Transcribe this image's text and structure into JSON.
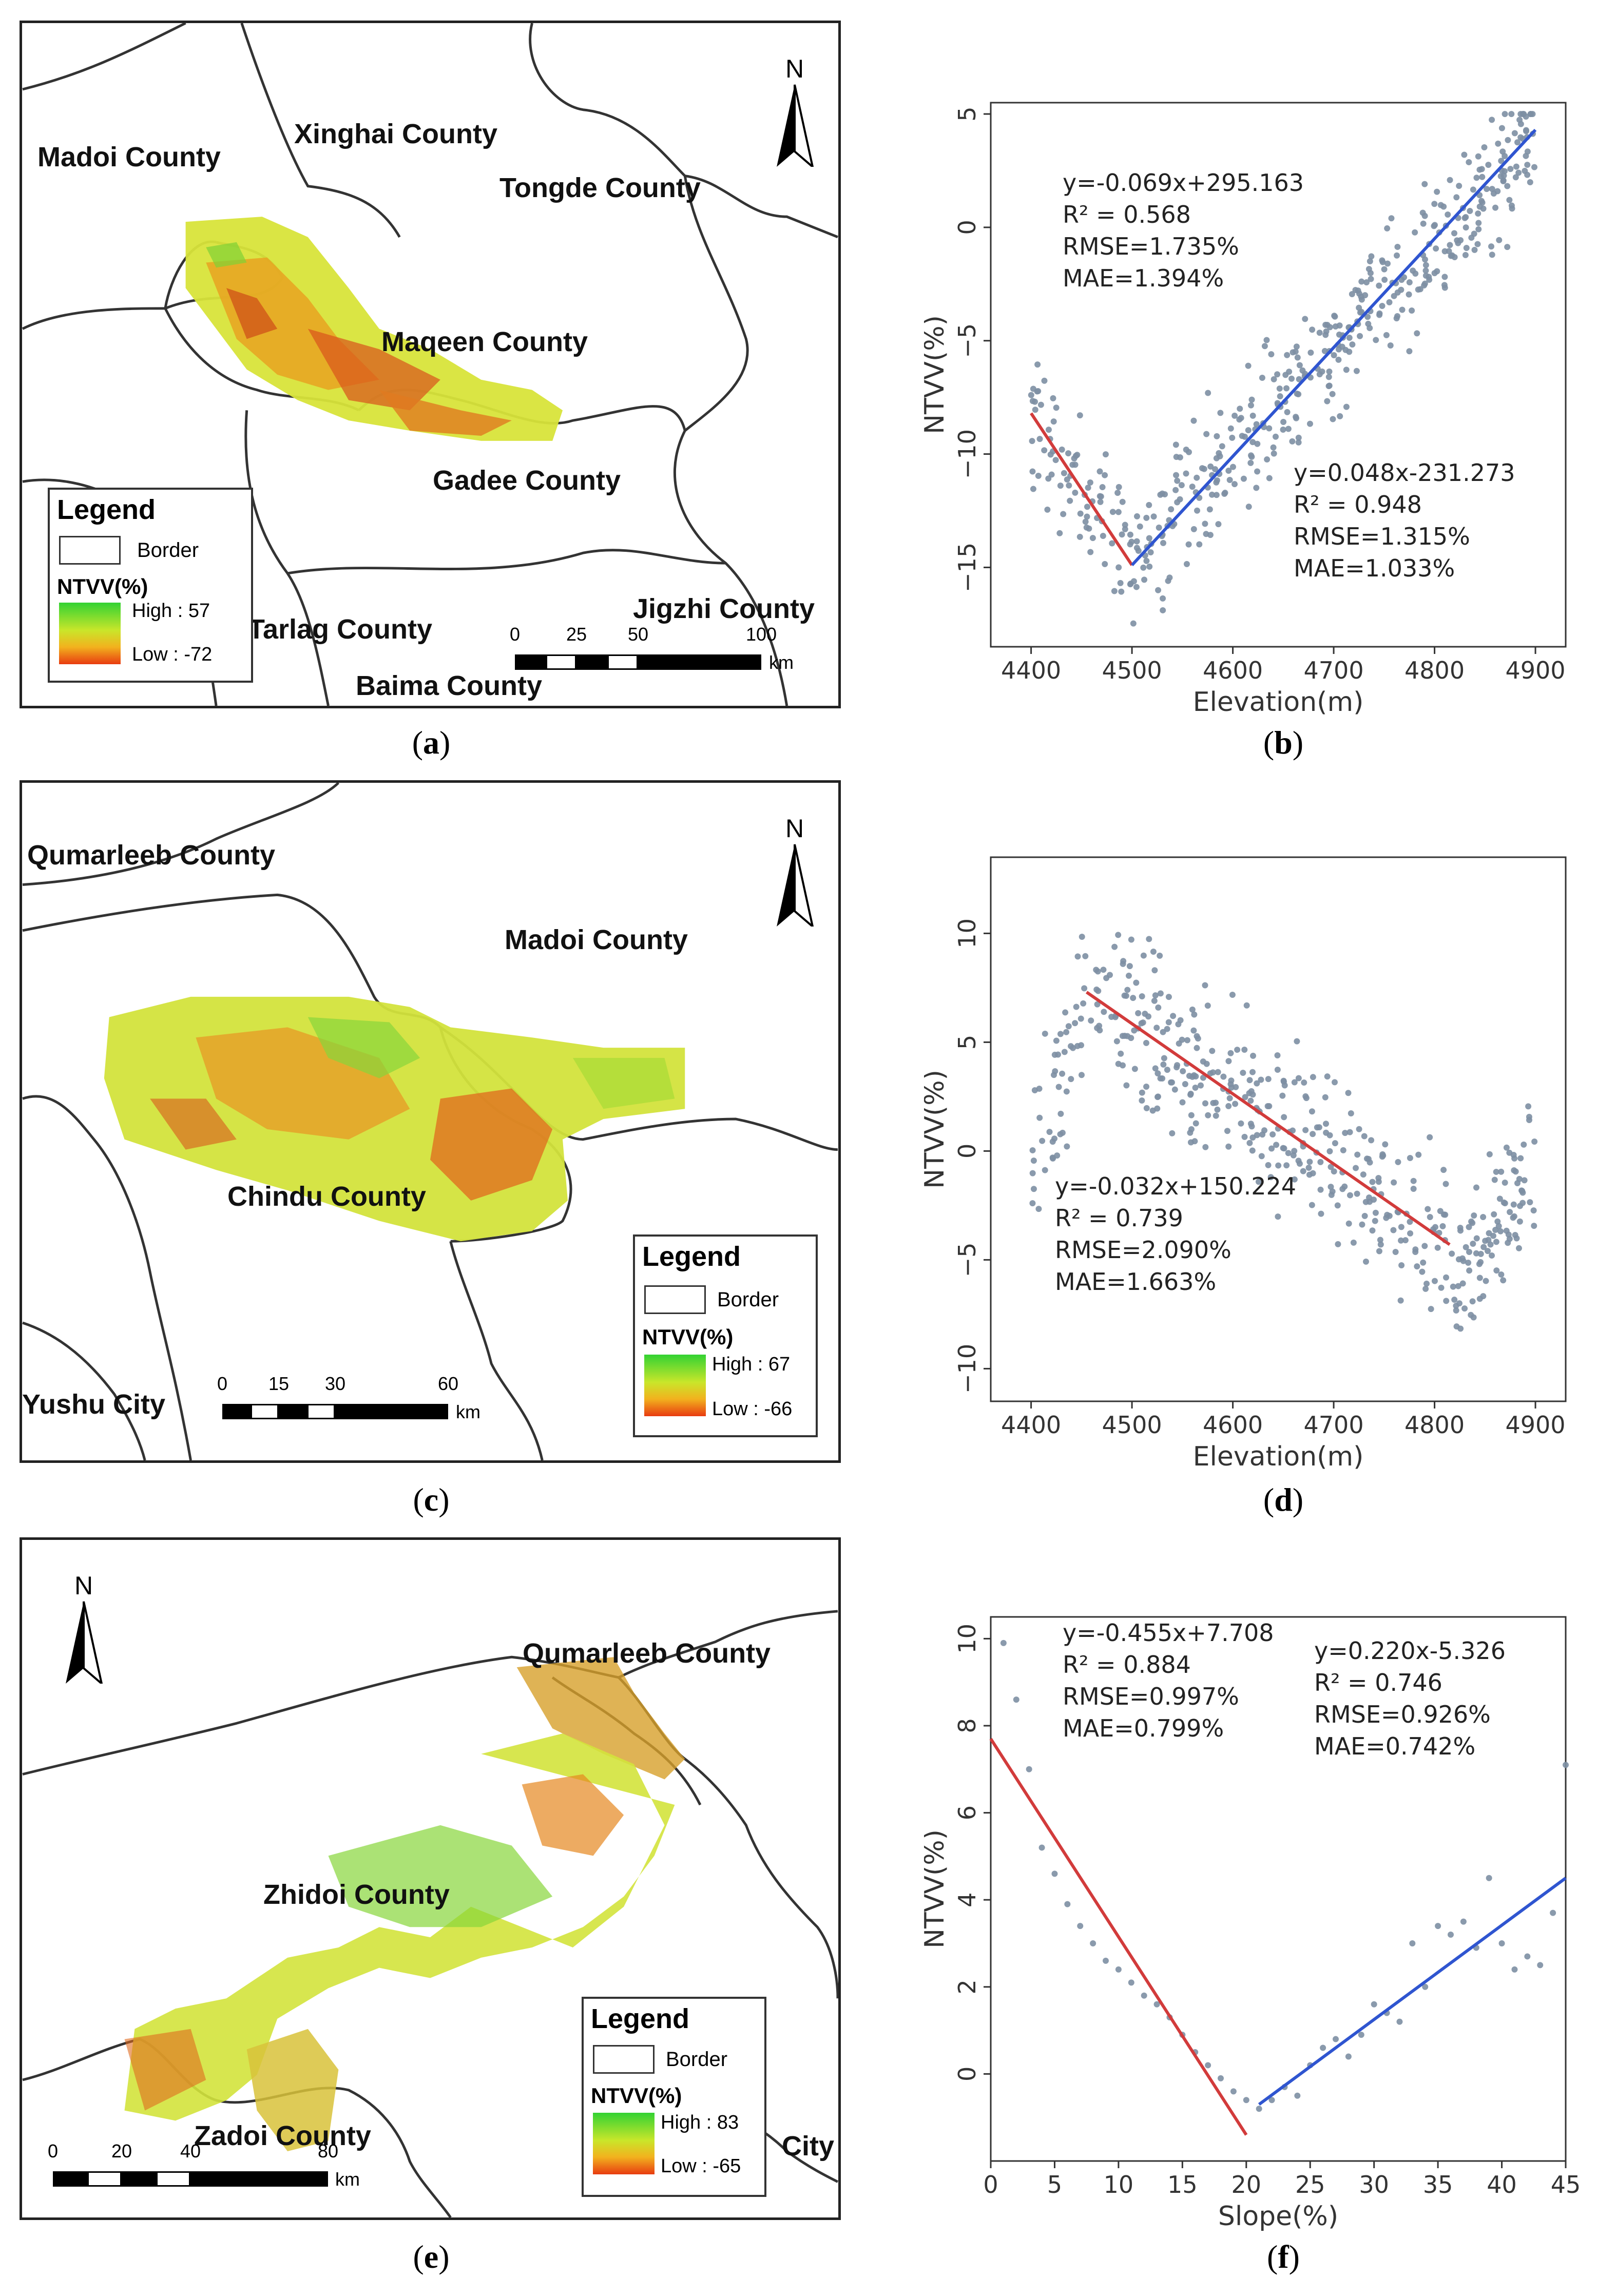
{
  "maps": [
    {
      "id": "a",
      "counties": [
        "Madoi County",
        "Xinghai County",
        "Tongde County",
        "Maqeen County",
        "Gadee County",
        "Tarlag County",
        "Jigzhi County",
        "Baima County"
      ],
      "north": "N",
      "legend": {
        "title": "Legend",
        "border": "Border",
        "ntvv": "NTVV(%)",
        "high": "High : 57",
        "low": "Low : -72"
      },
      "scale": {
        "ticks": [
          "0",
          "25",
          "50",
          "100"
        ],
        "unit": "km"
      },
      "caption": "a"
    },
    {
      "id": "c",
      "counties": [
        "Qumarleeb County",
        "Madoi County",
        "Chindu County",
        "Yushu City"
      ],
      "north": "N",
      "legend": {
        "title": "Legend",
        "border": "Border",
        "ntvv": "NTVV(%)",
        "high": "High : 67",
        "low": "Low : -66"
      },
      "scale": {
        "ticks": [
          "0",
          "15",
          "30",
          "60"
        ],
        "unit": "km"
      },
      "caption": "c"
    },
    {
      "id": "e",
      "counties": [
        "Qumarleeb County",
        "Zhidoi County",
        "Zadoi County",
        "City"
      ],
      "north": "N",
      "legend": {
        "title": "Legend",
        "border": "Border",
        "ntvv": "NTVV(%)",
        "high": "High : 83",
        "low": "Low : -65"
      },
      "scale": {
        "ticks": [
          "0",
          "20",
          "40",
          "80"
        ],
        "unit": "km"
      },
      "caption": "e"
    }
  ],
  "chart_data": [
    {
      "id": "b",
      "type": "scatter",
      "xlabel": "Elevation(m)",
      "ylabel": "NTVV(%)",
      "xlim": [
        4360,
        4930
      ],
      "ylim": [
        -18.5,
        5.5
      ],
      "xticks": [
        "4400",
        "4500",
        "4600",
        "4700",
        "4800",
        "4900"
      ],
      "yticks": [
        "5",
        "0",
        "−5",
        "−10",
        "−15"
      ],
      "ytick_values": [
        5,
        0,
        -5,
        -10,
        -15
      ],
      "xtick_values": [
        4400,
        4500,
        4600,
        4700,
        4800,
        4900
      ],
      "fits": [
        {
          "x": [
            4400,
            4500
          ],
          "y": [
            -8.2,
            -14.9
          ],
          "color": "#d23b3b"
        },
        {
          "x": [
            4500,
            4900
          ],
          "y": [
            -14.9,
            4.3
          ],
          "color": "#2f55d0"
        }
      ],
      "annotations": [
        {
          "lines": [
            "y=-0.069x+295.163",
            "R² = 0.568",
            "RMSE=1.735%",
            "MAE=1.394%"
          ]
        },
        {
          "lines": [
            "y=0.048x-231.273",
            "R² = 0.948",
            "RMSE=1.315%",
            "MAE=1.033%"
          ]
        }
      ],
      "caption": "b"
    },
    {
      "id": "d",
      "type": "scatter",
      "xlabel": "Elevation(m)",
      "ylabel": "NTVV(%)",
      "xlim": [
        4360,
        4930
      ],
      "ylim": [
        -11.5,
        13.5
      ],
      "xticks": [
        "4400",
        "4500",
        "4600",
        "4700",
        "4800",
        "4900"
      ],
      "yticks": [
        "10",
        "5",
        "0",
        "−5",
        "−10"
      ],
      "ytick_values": [
        10,
        5,
        0,
        -5,
        -10
      ],
      "xtick_values": [
        4400,
        4500,
        4600,
        4700,
        4800,
        4900
      ],
      "fits": [
        {
          "x": [
            4455,
            4815
          ],
          "y": [
            7.3,
            -4.3
          ],
          "color": "#d23b3b"
        }
      ],
      "annotations": [
        {
          "lines": [
            "y=-0.032x+150.224",
            "R² = 0.739",
            "RMSE=2.090%",
            "MAE=1.663%"
          ]
        }
      ],
      "caption": "d"
    },
    {
      "id": "f",
      "type": "scatter",
      "xlabel": "Slope(%)",
      "ylabel": "NTVV(%)",
      "xlim": [
        0,
        45
      ],
      "ylim": [
        -2,
        10.5
      ],
      "xticks": [
        "0",
        "5",
        "10",
        "15",
        "20",
        "25",
        "30",
        "35",
        "40",
        "45"
      ],
      "yticks": [
        "10",
        "8",
        "6",
        "4",
        "2",
        "0"
      ],
      "ytick_values": [
        10,
        8,
        6,
        4,
        2,
        0
      ],
      "xtick_values": [
        0,
        5,
        10,
        15,
        20,
        25,
        30,
        35,
        40,
        45
      ],
      "fits": [
        {
          "x": [
            0,
            20
          ],
          "y": [
            7.7,
            -1.4
          ],
          "color": "#d23b3b"
        },
        {
          "x": [
            21,
            45
          ],
          "y": [
            -0.7,
            4.5
          ],
          "color": "#2f55d0"
        }
      ],
      "points": {
        "x": [
          1,
          2,
          3,
          4,
          5,
          6,
          7,
          8,
          9,
          10,
          11,
          12,
          13,
          14,
          15,
          16,
          17,
          18,
          19,
          20,
          21,
          22,
          23,
          24,
          25,
          26,
          27,
          28,
          29,
          30,
          31,
          32,
          33,
          34,
          35,
          36,
          37,
          38,
          39,
          40,
          41,
          42,
          43,
          44,
          45
        ],
        "y": [
          9.9,
          8.6,
          7.0,
          5.2,
          4.6,
          3.9,
          3.4,
          3.0,
          2.6,
          2.4,
          2.1,
          1.8,
          1.6,
          1.3,
          0.9,
          0.5,
          0.2,
          -0.1,
          -0.4,
          -0.6,
          -0.8,
          -0.6,
          -0.3,
          -0.5,
          0.2,
          0.6,
          0.8,
          0.4,
          0.9,
          1.6,
          1.4,
          1.2,
          3.0,
          2.0,
          3.4,
          3.2,
          3.5,
          2.9,
          4.5,
          3.0,
          2.4,
          2.7,
          2.5,
          3.7,
          7.1
        ]
      },
      "annotations": [
        {
          "lines": [
            "y=-0.455x+7.708",
            "R² = 0.884",
            "RMSE=0.997%",
            "MAE=0.799%"
          ]
        },
        {
          "lines": [
            "y=0.220x-5.326",
            "R² = 0.746",
            "RMSE=0.926%",
            "MAE=0.742%"
          ]
        }
      ],
      "caption": "f"
    }
  ]
}
